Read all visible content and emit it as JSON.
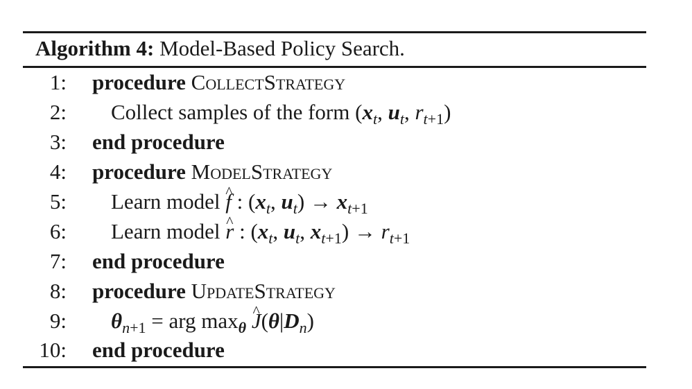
{
  "caption": {
    "label": "Algorithm 4:",
    "title": "Model-Based Policy Search."
  },
  "lines": [
    {
      "num": "1:",
      "keyword": "procedure",
      "name": "CollectStrategy"
    },
    {
      "num": "2:",
      "text": "Collect samples of the form"
    },
    {
      "num": "3:",
      "keyword": "end procedure"
    },
    {
      "num": "4:",
      "keyword": "procedure",
      "name": "ModelStrategy"
    },
    {
      "num": "5:",
      "text": "Learn model"
    },
    {
      "num": "6:",
      "text": "Learn model"
    },
    {
      "num": "7:",
      "keyword": "end procedure"
    },
    {
      "num": "8:",
      "keyword": "procedure",
      "name": "UpdateStrategy"
    },
    {
      "num": "9:"
    },
    {
      "num": "10:",
      "keyword": "end procedure"
    }
  ]
}
